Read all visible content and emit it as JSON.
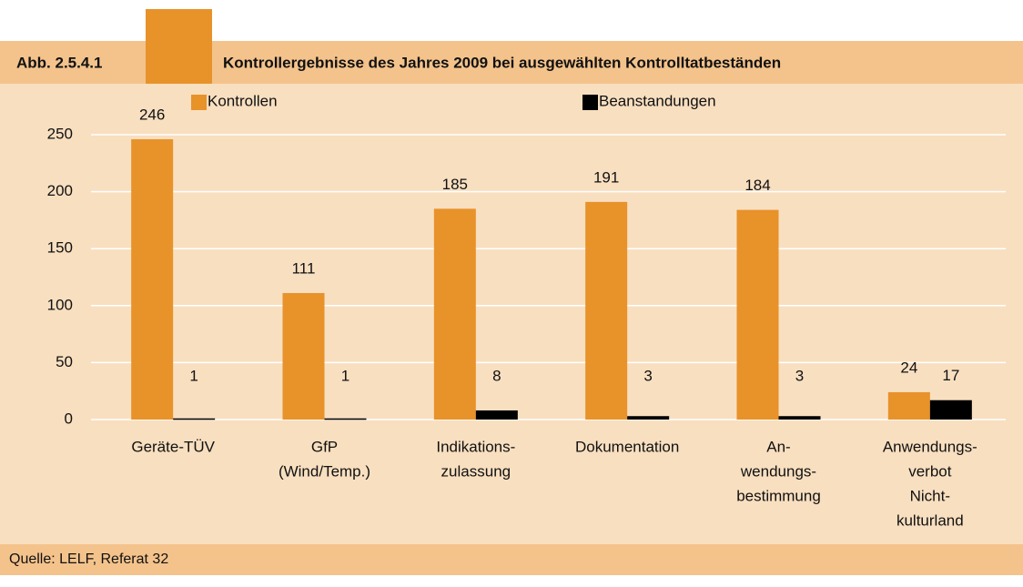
{
  "chart_data": {
    "type": "bar",
    "figure_label": "Abb. 2.5.4.1",
    "title": "Kontrollergebnisse des Jahres 2009 bei ausgewählten Kontrolltatbeständen",
    "source": "Quelle: LELF, Referat 32",
    "categories": [
      [
        "Geräte-TÜV"
      ],
      [
        "GfP",
        "(Wind/Temp.)"
      ],
      [
        "Indikations-",
        "zulassung"
      ],
      [
        "Dokumentation"
      ],
      [
        "An-",
        "wendungs-",
        "bestimmung"
      ],
      [
        "Anwendungs-",
        "verbot",
        "Nicht-",
        "kulturland"
      ]
    ],
    "series": [
      {
        "name": "Kontrollen",
        "color": "#e8922a",
        "values": [
          246,
          111,
          185,
          191,
          184,
          24
        ]
      },
      {
        "name": "Beanstandungen",
        "color": "#000000",
        "values": [
          1,
          1,
          8,
          3,
          3,
          17
        ]
      }
    ],
    "ylim": [
      0,
      250
    ],
    "yticks": [
      0,
      50,
      100,
      150,
      200,
      250
    ],
    "grid": true
  }
}
